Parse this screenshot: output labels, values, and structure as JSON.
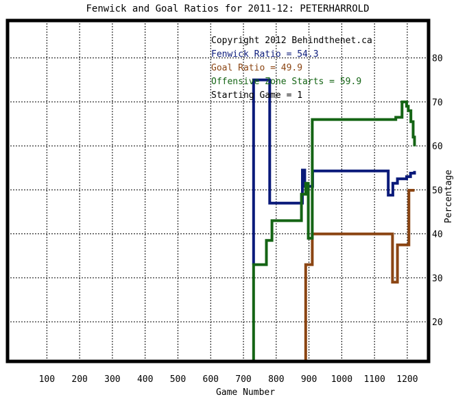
{
  "chart_data": {
    "type": "line",
    "title": "Fenwick and Goal Ratios for 2011-12: PETERHARROLD",
    "xlabel": "Game Number",
    "ylabel": "Percentage",
    "xlim": [
      -20,
      1265
    ],
    "ylim": [
      11,
      88.5
    ],
    "x_ticks": [
      100,
      200,
      300,
      400,
      500,
      600,
      700,
      800,
      900,
      1000,
      1100,
      1200
    ],
    "y_ticks": [
      20,
      30,
      40,
      50,
      60,
      70,
      80
    ],
    "grid": true,
    "legend_position": "top-right, inside plot",
    "legend": {
      "copyright": "Copyright 2012 Behindthenet.ca",
      "fenwick": "Fenwick Ratio = 54.3",
      "goal": "Goal Ratio = 49.9",
      "ozone": "Offensive Zone Starts = 59.9",
      "starting": "Starting Game = 1"
    },
    "series": [
      {
        "key": "fenwick",
        "color": "#0a1a7a",
        "points": [
          [
            731,
            33
          ],
          [
            731,
            75
          ],
          [
            766,
            75
          ],
          [
            766,
            75
          ],
          [
            780,
            75
          ],
          [
            780,
            47
          ],
          [
            880,
            47
          ],
          [
            880,
            54.5
          ],
          [
            887,
            54.5
          ],
          [
            887,
            50.8
          ],
          [
            911,
            50.8
          ],
          [
            911,
            54.3
          ],
          [
            1142,
            54.3
          ],
          [
            1142,
            48.8
          ],
          [
            1156,
            48.8
          ],
          [
            1156,
            51.5
          ],
          [
            1170,
            51.5
          ],
          [
            1170,
            52.5
          ],
          [
            1198,
            52.5
          ],
          [
            1198,
            53
          ],
          [
            1210,
            53
          ],
          [
            1210,
            53.8
          ],
          [
            1222,
            53.8
          ],
          [
            1222,
            54.3
          ]
        ]
      },
      {
        "key": "goal",
        "color": "#8b4513",
        "points": [
          [
            890,
            11
          ],
          [
            890,
            33
          ],
          [
            910,
            33
          ],
          [
            910,
            40
          ],
          [
            1155,
            40
          ],
          [
            1155,
            29
          ],
          [
            1170,
            29
          ],
          [
            1170,
            37.5
          ],
          [
            1205,
            37.5
          ],
          [
            1205,
            49.9
          ],
          [
            1222,
            49.9
          ]
        ]
      },
      {
        "key": "ozone",
        "color": "#146414",
        "points": [
          [
            731,
            11
          ],
          [
            731,
            33
          ],
          [
            770,
            33
          ],
          [
            770,
            38.5
          ],
          [
            787,
            38.5
          ],
          [
            787,
            43
          ],
          [
            877,
            43
          ],
          [
            877,
            49
          ],
          [
            890,
            49
          ],
          [
            890,
            51.5
          ],
          [
            898,
            51.5
          ],
          [
            898,
            39
          ],
          [
            910,
            39
          ],
          [
            910,
            66
          ],
          [
            1165,
            66
          ],
          [
            1165,
            66.5
          ],
          [
            1184,
            66.5
          ],
          [
            1184,
            70
          ],
          [
            1198,
            70
          ],
          [
            1198,
            69
          ],
          [
            1203,
            69
          ],
          [
            1203,
            68
          ],
          [
            1211,
            68
          ],
          [
            1211,
            65.5
          ],
          [
            1218,
            65.5
          ],
          [
            1218,
            62
          ],
          [
            1222,
            62
          ],
          [
            1222,
            59.9
          ]
        ]
      }
    ]
  }
}
